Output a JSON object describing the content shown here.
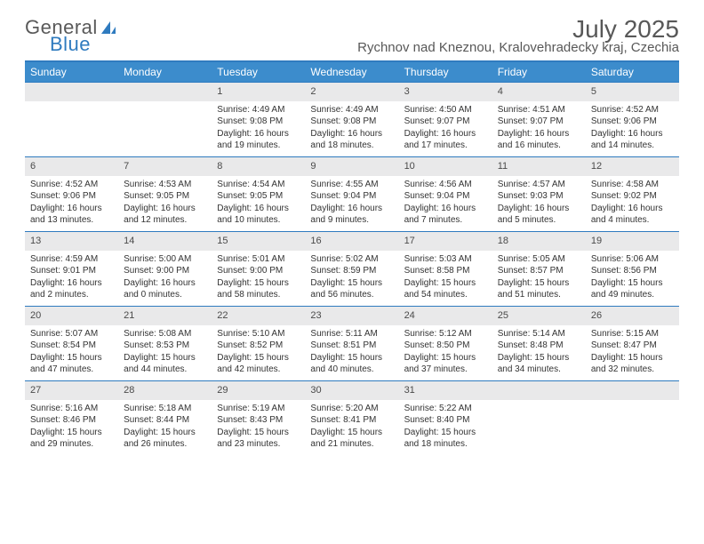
{
  "logo": {
    "text1": "General",
    "text2": "Blue"
  },
  "title": "July 2025",
  "location": "Rychnov nad Kneznou, Kralovehradecky kraj, Czechia",
  "colors": {
    "header_bg": "#3c8ccc",
    "header_text": "#ffffff",
    "border": "#2f7bbf",
    "daynum_bg": "#e9e9ea",
    "body_text": "#333333",
    "title_text": "#585858"
  },
  "day_headers": [
    "Sunday",
    "Monday",
    "Tuesday",
    "Wednesday",
    "Thursday",
    "Friday",
    "Saturday"
  ],
  "weeks": [
    [
      null,
      null,
      {
        "n": "1",
        "sr": "4:49 AM",
        "ss": "9:08 PM",
        "dl": "16 hours and 19 minutes."
      },
      {
        "n": "2",
        "sr": "4:49 AM",
        "ss": "9:08 PM",
        "dl": "16 hours and 18 minutes."
      },
      {
        "n": "3",
        "sr": "4:50 AM",
        "ss": "9:07 PM",
        "dl": "16 hours and 17 minutes."
      },
      {
        "n": "4",
        "sr": "4:51 AM",
        "ss": "9:07 PM",
        "dl": "16 hours and 16 minutes."
      },
      {
        "n": "5",
        "sr": "4:52 AM",
        "ss": "9:06 PM",
        "dl": "16 hours and 14 minutes."
      }
    ],
    [
      {
        "n": "6",
        "sr": "4:52 AM",
        "ss": "9:06 PM",
        "dl": "16 hours and 13 minutes."
      },
      {
        "n": "7",
        "sr": "4:53 AM",
        "ss": "9:05 PM",
        "dl": "16 hours and 12 minutes."
      },
      {
        "n": "8",
        "sr": "4:54 AM",
        "ss": "9:05 PM",
        "dl": "16 hours and 10 minutes."
      },
      {
        "n": "9",
        "sr": "4:55 AM",
        "ss": "9:04 PM",
        "dl": "16 hours and 9 minutes."
      },
      {
        "n": "10",
        "sr": "4:56 AM",
        "ss": "9:04 PM",
        "dl": "16 hours and 7 minutes."
      },
      {
        "n": "11",
        "sr": "4:57 AM",
        "ss": "9:03 PM",
        "dl": "16 hours and 5 minutes."
      },
      {
        "n": "12",
        "sr": "4:58 AM",
        "ss": "9:02 PM",
        "dl": "16 hours and 4 minutes."
      }
    ],
    [
      {
        "n": "13",
        "sr": "4:59 AM",
        "ss": "9:01 PM",
        "dl": "16 hours and 2 minutes."
      },
      {
        "n": "14",
        "sr": "5:00 AM",
        "ss": "9:00 PM",
        "dl": "16 hours and 0 minutes."
      },
      {
        "n": "15",
        "sr": "5:01 AM",
        "ss": "9:00 PM",
        "dl": "15 hours and 58 minutes."
      },
      {
        "n": "16",
        "sr": "5:02 AM",
        "ss": "8:59 PM",
        "dl": "15 hours and 56 minutes."
      },
      {
        "n": "17",
        "sr": "5:03 AM",
        "ss": "8:58 PM",
        "dl": "15 hours and 54 minutes."
      },
      {
        "n": "18",
        "sr": "5:05 AM",
        "ss": "8:57 PM",
        "dl": "15 hours and 51 minutes."
      },
      {
        "n": "19",
        "sr": "5:06 AM",
        "ss": "8:56 PM",
        "dl": "15 hours and 49 minutes."
      }
    ],
    [
      {
        "n": "20",
        "sr": "5:07 AM",
        "ss": "8:54 PM",
        "dl": "15 hours and 47 minutes."
      },
      {
        "n": "21",
        "sr": "5:08 AM",
        "ss": "8:53 PM",
        "dl": "15 hours and 44 minutes."
      },
      {
        "n": "22",
        "sr": "5:10 AM",
        "ss": "8:52 PM",
        "dl": "15 hours and 42 minutes."
      },
      {
        "n": "23",
        "sr": "5:11 AM",
        "ss": "8:51 PM",
        "dl": "15 hours and 40 minutes."
      },
      {
        "n": "24",
        "sr": "5:12 AM",
        "ss": "8:50 PM",
        "dl": "15 hours and 37 minutes."
      },
      {
        "n": "25",
        "sr": "5:14 AM",
        "ss": "8:48 PM",
        "dl": "15 hours and 34 minutes."
      },
      {
        "n": "26",
        "sr": "5:15 AM",
        "ss": "8:47 PM",
        "dl": "15 hours and 32 minutes."
      }
    ],
    [
      {
        "n": "27",
        "sr": "5:16 AM",
        "ss": "8:46 PM",
        "dl": "15 hours and 29 minutes."
      },
      {
        "n": "28",
        "sr": "5:18 AM",
        "ss": "8:44 PM",
        "dl": "15 hours and 26 minutes."
      },
      {
        "n": "29",
        "sr": "5:19 AM",
        "ss": "8:43 PM",
        "dl": "15 hours and 23 minutes."
      },
      {
        "n": "30",
        "sr": "5:20 AM",
        "ss": "8:41 PM",
        "dl": "15 hours and 21 minutes."
      },
      {
        "n": "31",
        "sr": "5:22 AM",
        "ss": "8:40 PM",
        "dl": "15 hours and 18 minutes."
      },
      null,
      null
    ]
  ],
  "labels": {
    "sunrise": "Sunrise:",
    "sunset": "Sunset:",
    "daylight": "Daylight:"
  }
}
